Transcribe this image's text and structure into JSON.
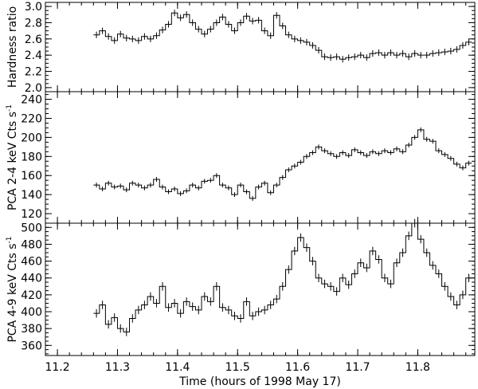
{
  "chart_data": [
    {
      "type": "line",
      "ylabel": "Hardness ratio",
      "ylim": [
        1.95,
        3.05
      ],
      "yticks": [
        2.0,
        2.2,
        2.4,
        2.6,
        2.8,
        3.0
      ],
      "ytick_labels": [
        "2.0",
        "2.2",
        "2.4",
        "2.6",
        "2.8",
        "3.0"
      ],
      "step": true,
      "error_bars": true,
      "x": [
        11.265,
        11.275,
        11.285,
        11.295,
        11.305,
        11.315,
        11.325,
        11.335,
        11.345,
        11.355,
        11.365,
        11.375,
        11.385,
        11.395,
        11.405,
        11.415,
        11.425,
        11.435,
        11.445,
        11.455,
        11.465,
        11.475,
        11.485,
        11.495,
        11.505,
        11.515,
        11.525,
        11.535,
        11.545,
        11.555,
        11.565,
        11.575,
        11.585,
        11.595,
        11.605,
        11.615,
        11.625,
        11.635,
        11.645,
        11.655,
        11.665,
        11.675,
        11.685,
        11.695,
        11.705,
        11.715,
        11.725,
        11.735,
        11.745,
        11.755,
        11.765,
        11.775,
        11.785,
        11.795,
        11.805,
        11.815,
        11.825,
        11.835,
        11.845,
        11.855,
        11.865,
        11.875,
        11.885
      ],
      "values": [
        2.65,
        2.7,
        2.63,
        2.58,
        2.66,
        2.61,
        2.6,
        2.58,
        2.63,
        2.6,
        2.64,
        2.71,
        2.78,
        2.92,
        2.86,
        2.9,
        2.8,
        2.72,
        2.66,
        2.72,
        2.8,
        2.87,
        2.78,
        2.7,
        2.8,
        2.88,
        2.82,
        2.83,
        2.7,
        2.64,
        2.89,
        2.76,
        2.65,
        2.6,
        2.58,
        2.56,
        2.52,
        2.46,
        2.38,
        2.37,
        2.38,
        2.35,
        2.37,
        2.38,
        2.4,
        2.37,
        2.42,
        2.43,
        2.4,
        2.43,
        2.4,
        2.42,
        2.38,
        2.42,
        2.4,
        2.4,
        2.42,
        2.43,
        2.44,
        2.45,
        2.47,
        2.52,
        2.56
      ],
      "error": 0.04
    },
    {
      "type": "line",
      "ylabel": "PCA 2-4 keV Cts s",
      "ylabel_superscript": "-1",
      "ylim": [
        110,
        248
      ],
      "yticks": [
        120,
        140,
        160,
        180,
        200,
        220,
        240
      ],
      "ytick_labels": [
        "120",
        "140",
        "160",
        "180",
        "200",
        "220",
        "240"
      ],
      "step": true,
      "error_bars": true,
      "x": [
        11.265,
        11.275,
        11.285,
        11.295,
        11.305,
        11.315,
        11.325,
        11.335,
        11.345,
        11.355,
        11.365,
        11.375,
        11.385,
        11.395,
        11.405,
        11.415,
        11.425,
        11.435,
        11.445,
        11.455,
        11.465,
        11.475,
        11.485,
        11.495,
        11.505,
        11.515,
        11.525,
        11.535,
        11.545,
        11.555,
        11.565,
        11.575,
        11.585,
        11.595,
        11.605,
        11.615,
        11.625,
        11.635,
        11.645,
        11.655,
        11.665,
        11.675,
        11.685,
        11.695,
        11.705,
        11.715,
        11.725,
        11.735,
        11.745,
        11.755,
        11.765,
        11.775,
        11.785,
        11.795,
        11.805,
        11.815,
        11.825,
        11.835,
        11.845,
        11.855,
        11.865,
        11.875,
        11.885
      ],
      "values": [
        150,
        146,
        152,
        148,
        149,
        145,
        152,
        150,
        147,
        150,
        156,
        148,
        143,
        146,
        141,
        144,
        150,
        147,
        154,
        155,
        160,
        150,
        147,
        140,
        150,
        143,
        136,
        148,
        152,
        142,
        150,
        158,
        166,
        170,
        174,
        180,
        184,
        190,
        186,
        183,
        180,
        184,
        181,
        187,
        184,
        181,
        185,
        183,
        186,
        184,
        188,
        185,
        192,
        200,
        208,
        198,
        196,
        186,
        182,
        178,
        172,
        168,
        173
      ],
      "error": 2.5
    },
    {
      "type": "line",
      "ylabel": "PCA 4-9 keV Cts s",
      "ylabel_superscript": "-1",
      "ylim": [
        348,
        505
      ],
      "yticks": [
        360,
        380,
        400,
        420,
        440,
        460,
        480,
        500
      ],
      "ytick_labels": [
        "360",
        "380",
        "400",
        "420",
        "440",
        "460",
        "480",
        "500"
      ],
      "step": true,
      "error_bars": true,
      "x": [
        11.265,
        11.275,
        11.285,
        11.295,
        11.305,
        11.315,
        11.325,
        11.335,
        11.345,
        11.355,
        11.365,
        11.375,
        11.385,
        11.395,
        11.405,
        11.415,
        11.425,
        11.435,
        11.445,
        11.455,
        11.465,
        11.475,
        11.485,
        11.495,
        11.505,
        11.515,
        11.525,
        11.535,
        11.545,
        11.555,
        11.565,
        11.575,
        11.585,
        11.595,
        11.605,
        11.615,
        11.625,
        11.635,
        11.645,
        11.655,
        11.665,
        11.675,
        11.685,
        11.695,
        11.705,
        11.715,
        11.725,
        11.735,
        11.745,
        11.755,
        11.765,
        11.775,
        11.785,
        11.795,
        11.805,
        11.815,
        11.825,
        11.835,
        11.845,
        11.855,
        11.865,
        11.875,
        11.885
      ],
      "values": [
        398,
        408,
        385,
        393,
        380,
        376,
        392,
        402,
        408,
        418,
        410,
        430,
        405,
        410,
        398,
        412,
        406,
        402,
        418,
        412,
        430,
        405,
        402,
        395,
        392,
        412,
        395,
        400,
        402,
        408,
        415,
        430,
        450,
        472,
        488,
        476,
        460,
        440,
        433,
        430,
        424,
        440,
        432,
        445,
        458,
        452,
        472,
        462,
        440,
        433,
        458,
        470,
        490,
        505,
        486,
        470,
        455,
        445,
        430,
        418,
        408,
        420,
        440
      ],
      "error": 5
    }
  ],
  "xlabel": "Time (hours of 1998 May 17)",
  "xlim": [
    11.18,
    11.895
  ],
  "xticks": [
    11.2,
    11.3,
    11.4,
    11.5,
    11.6,
    11.7,
    11.8
  ],
  "xtick_labels": [
    "11.2",
    "11.3",
    "11.4",
    "11.5",
    "11.6",
    "11.7",
    "11.8"
  ]
}
